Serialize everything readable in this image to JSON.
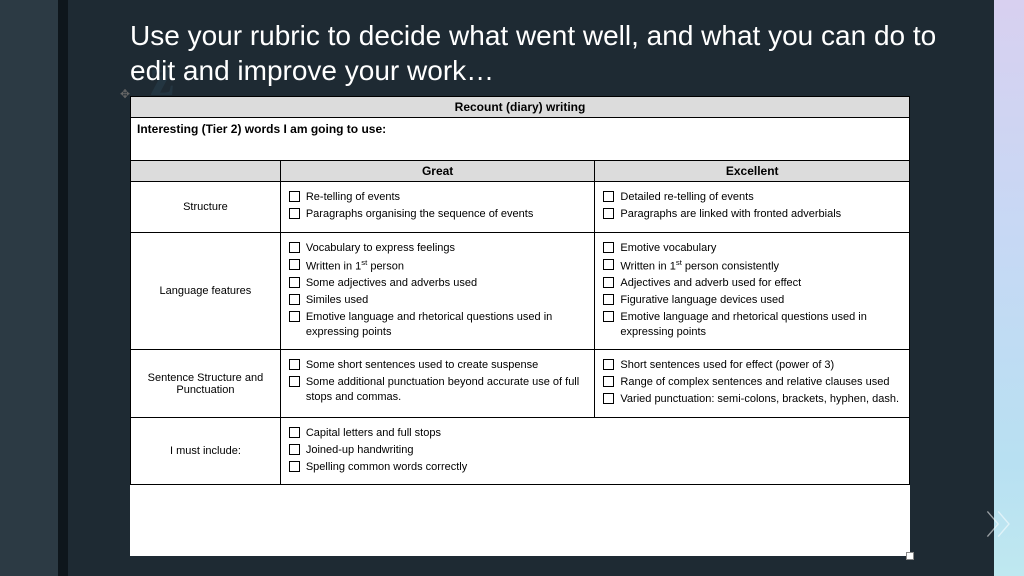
{
  "slide": {
    "heading": "Use your rubric to decide what went well, and what you can do to edit and improve your work…",
    "heading_color": "#ffffff",
    "heading_fontsize": 28,
    "bg_color": "#1e2a33",
    "left_accent_color": "#2c3a44",
    "left_edge_color": "#0e161c",
    "right_accent_gradient": [
      "#d8d0f0",
      "#c7d8f4",
      "#b8e0f2",
      "#bfe8f0"
    ]
  },
  "rubric": {
    "title": "Recount (diary) writing",
    "tier2_label": "Interesting (Tier 2) words I am going to use:",
    "col_headers": {
      "left": "Great",
      "right": "Excellent"
    },
    "rows": [
      {
        "label": "Structure",
        "great": [
          "Re-telling of events",
          "Paragraphs organising the sequence of events"
        ],
        "excellent": [
          "Detailed re-telling of events",
          "Paragraphs are linked with fronted adverbials"
        ]
      },
      {
        "label": "Language features",
        "great": [
          "Vocabulary to express feelings",
          "Written in 1ˢᵗ person",
          "Some adjectives and adverbs used",
          "Similes used",
          "Emotive language and rhetorical questions used in expressing points"
        ],
        "excellent": [
          "Emotive vocabulary",
          "Written in 1ˢᵗ person consistently",
          "Adjectives and adverb used for effect",
          "Figurative language devices used",
          "Emotive language and rhetorical questions used in expressing points"
        ]
      },
      {
        "label": "Sentence Structure and Punctuation",
        "great": [
          "Some short sentences used to create suspense",
          "Some additional punctuation beyond accurate use of full stops and commas."
        ],
        "excellent": [
          "Short sentences used for effect (power of 3)",
          "Range of complex sentences and relative clauses used",
          "Varied punctuation: semi-colons, brackets, hyphen, dash."
        ]
      },
      {
        "label": "I must include:",
        "great": [
          "Capital letters and full stops",
          "Joined-up handwriting",
          "Spelling common words correctly"
        ],
        "excellent": []
      }
    ],
    "header_bg": "#dcdcdc",
    "border_color": "#000000",
    "cell_bg": "#ffffff",
    "font_family": "Segoe UI",
    "body_fontsize": 11,
    "col_widths": {
      "label": 150,
      "great": 315,
      "excellent": 315
    }
  }
}
